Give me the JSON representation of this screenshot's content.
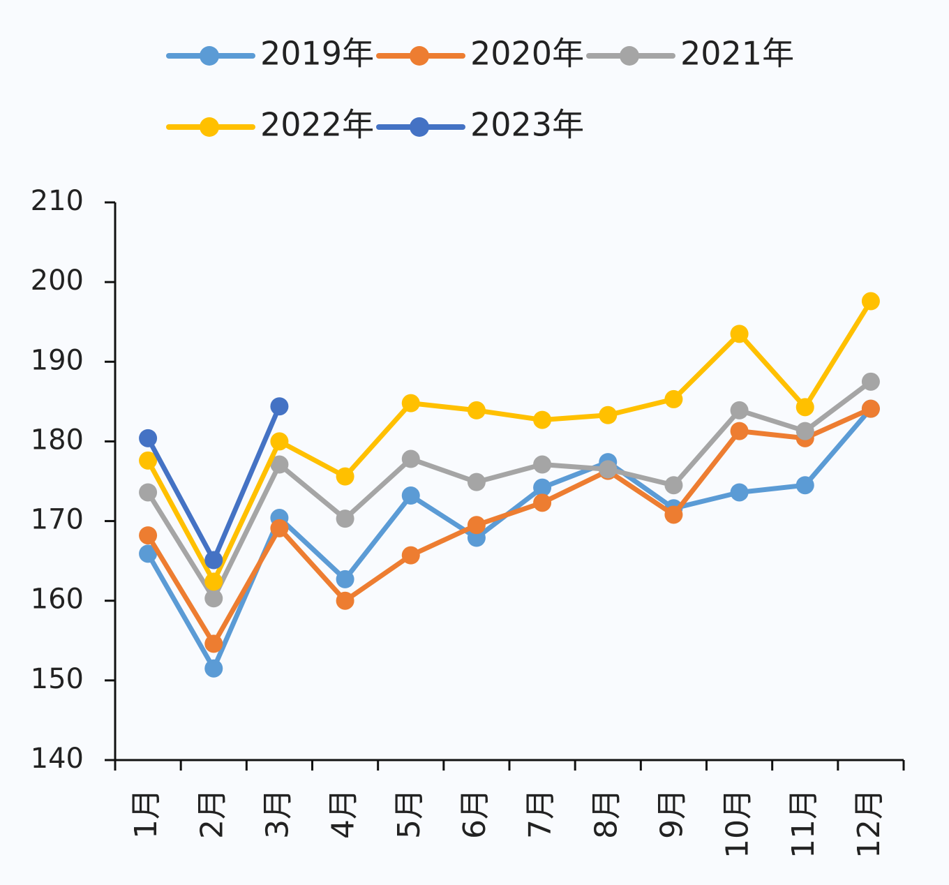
{
  "chart_data": {
    "type": "line",
    "categories": [
      "1月",
      "2月",
      "3月",
      "4月",
      "5月",
      "6月",
      "7月",
      "8月",
      "9月",
      "10月",
      "11月",
      "12月"
    ],
    "series": [
      {
        "name": "2019年",
        "color": "#5b9bd5",
        "values": [
          165.9,
          151.5,
          170.4,
          162.7,
          173.2,
          167.9,
          174.2,
          177.4,
          171.6,
          173.6,
          174.5,
          184.1
        ]
      },
      {
        "name": "2020年",
        "color": "#ed7d31",
        "values": [
          168.2,
          154.6,
          169.1,
          160.0,
          165.7,
          169.5,
          172.3,
          176.3,
          170.8,
          181.3,
          180.4,
          184.1
        ]
      },
      {
        "name": "2021年",
        "color": "#a5a5a5",
        "values": [
          173.6,
          160.3,
          177.1,
          170.3,
          177.8,
          174.9,
          177.1,
          176.5,
          174.5,
          183.9,
          181.3,
          187.5
        ]
      },
      {
        "name": "2022年",
        "color": "#ffc000",
        "values": [
          177.6,
          162.4,
          180.0,
          175.6,
          184.8,
          183.9,
          182.7,
          183.3,
          185.3,
          193.5,
          184.3,
          197.6
        ]
      },
      {
        "name": "2023年",
        "color": "#4472c4",
        "values": [
          180.4,
          165.1,
          184.4,
          null,
          null,
          null,
          null,
          null,
          null,
          null,
          null,
          null
        ]
      }
    ],
    "ylim": [
      140,
      210
    ],
    "yticks": [
      140,
      150,
      160,
      170,
      180,
      190,
      200,
      210
    ],
    "legend": "top"
  }
}
